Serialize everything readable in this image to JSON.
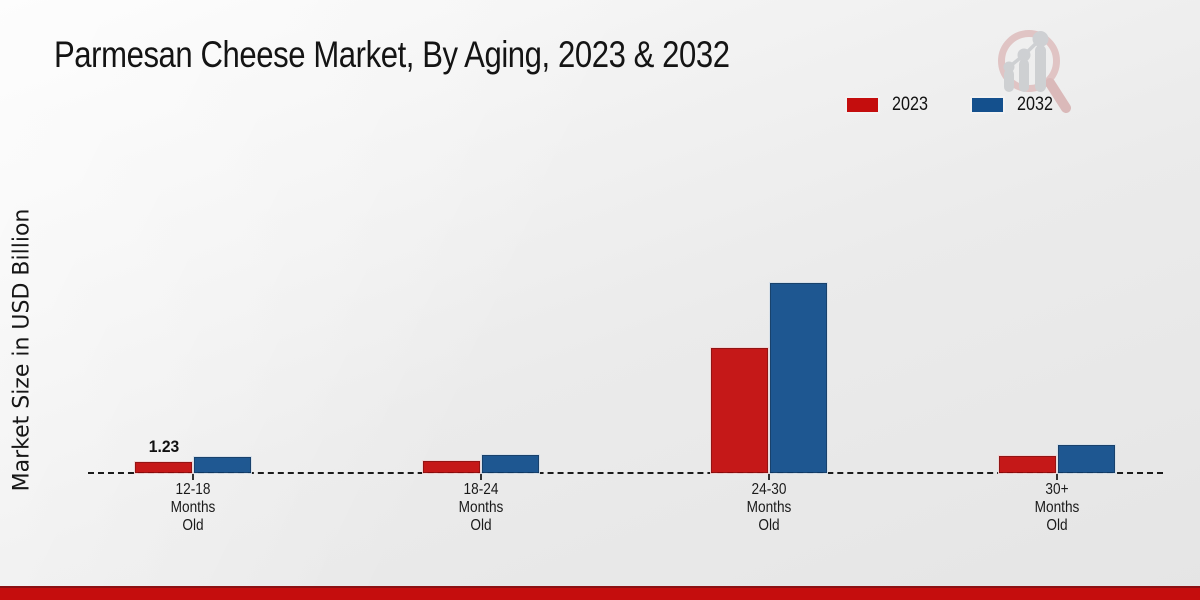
{
  "title": "Parmesan Cheese Market, By Aging, 2023 & 2032",
  "colors": {
    "series_2023": "#c40d0d",
    "series_2032": "#14508d",
    "axis_line": "#1c1c1c",
    "bottom_band": "#c50d0d",
    "bottom_band_edge": "#8c1113",
    "logo_ring": "#dfc0c0",
    "logo_bars": "#cbcdd0"
  },
  "legend": {
    "items": [
      {
        "label": "2023",
        "color": "#c40d0d"
      },
      {
        "label": "2032",
        "color": "#14508d"
      }
    ]
  },
  "chart_data": {
    "type": "bar",
    "title": "Parmesan Cheese Market, By Aging, 2023 & 2032",
    "xlabel": "",
    "ylabel": "Market Size in USD Billion",
    "categories": [
      "12-18 Months Old",
      "18-24 Months Old",
      "24-30 Months Old",
      "30+ Months Old"
    ],
    "category_lines": [
      [
        "12-18",
        "Months",
        "Old"
      ],
      [
        "18-24",
        "Months",
        "Old"
      ],
      [
        "24-30",
        "Months",
        "Old"
      ],
      [
        "30+",
        "Months",
        "Old"
      ]
    ],
    "series": [
      {
        "name": "2023",
        "color": "#c40d0d",
        "values": [
          1.23,
          1.27,
          11.6,
          1.76
        ]
      },
      {
        "name": "2032",
        "color": "#14508d",
        "values": [
          1.66,
          1.82,
          17.5,
          2.75
        ]
      }
    ],
    "data_labels": [
      {
        "series": "2023",
        "category": "12-18 Months Old",
        "text": "1.23"
      }
    ],
    "ylim": [
      0,
      20
    ],
    "grid": false,
    "legend_position": "top-right",
    "axis_style": "dashed zero line only, no y ticks"
  }
}
